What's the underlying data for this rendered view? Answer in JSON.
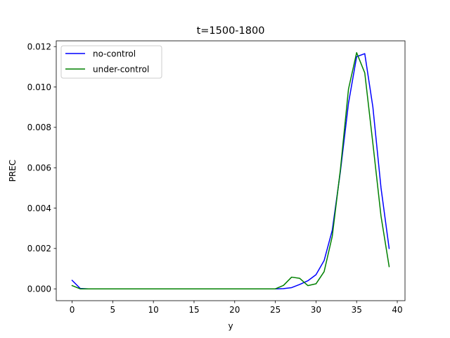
{
  "chart_data": {
    "type": "line",
    "title": "t=1500-1800",
    "xlabel": "y",
    "ylabel": "PREC",
    "xlim": [
      -1.95,
      40.95
    ],
    "ylim": [
      -0.000586,
      0.012285
    ],
    "xticks": [
      0,
      5,
      10,
      15,
      20,
      25,
      30,
      35,
      40
    ],
    "xtick_labels": [
      "0",
      "5",
      "10",
      "15",
      "20",
      "25",
      "30",
      "35",
      "40"
    ],
    "yticks": [
      0.0,
      0.002,
      0.004,
      0.006,
      0.008,
      0.01,
      0.012
    ],
    "ytick_labels": [
      "0.000",
      "0.002",
      "0.004",
      "0.006",
      "0.008",
      "0.010",
      "0.012"
    ],
    "legend_position": "upper-left",
    "x": [
      0,
      1,
      2,
      3,
      4,
      5,
      6,
      7,
      8,
      9,
      10,
      11,
      12,
      13,
      14,
      15,
      16,
      17,
      18,
      19,
      20,
      21,
      22,
      23,
      24,
      25,
      26,
      27,
      28,
      29,
      30,
      31,
      32,
      33,
      34,
      35,
      36,
      37,
      38,
      39
    ],
    "series": [
      {
        "name": "no-control",
        "color": "#0000ff",
        "values": [
          0.00042,
          2e-05,
          0,
          0,
          0,
          0,
          0,
          0,
          0,
          0,
          0,
          0,
          0,
          0,
          0,
          0,
          0,
          0,
          0,
          0,
          0,
          0,
          0,
          0,
          0,
          0,
          1e-05,
          6e-05,
          0.00022,
          0.0004,
          0.0007,
          0.0014,
          0.0029,
          0.0058,
          0.0092,
          0.0115,
          0.01165,
          0.009,
          0.005,
          0.002
        ]
      },
      {
        "name": "under-control",
        "color": "#008000",
        "values": [
          0.00016,
          0,
          0,
          0,
          0,
          0,
          0,
          0,
          0,
          0,
          0,
          0,
          0,
          0,
          0,
          0,
          0,
          0,
          0,
          0,
          0,
          0,
          0,
          0,
          0,
          0,
          0.00017,
          0.00058,
          0.00052,
          0.00016,
          0.00025,
          0.00085,
          0.0026,
          0.0059,
          0.0099,
          0.0117,
          0.0107,
          0.0072,
          0.0036,
          0.0011
        ]
      }
    ]
  }
}
